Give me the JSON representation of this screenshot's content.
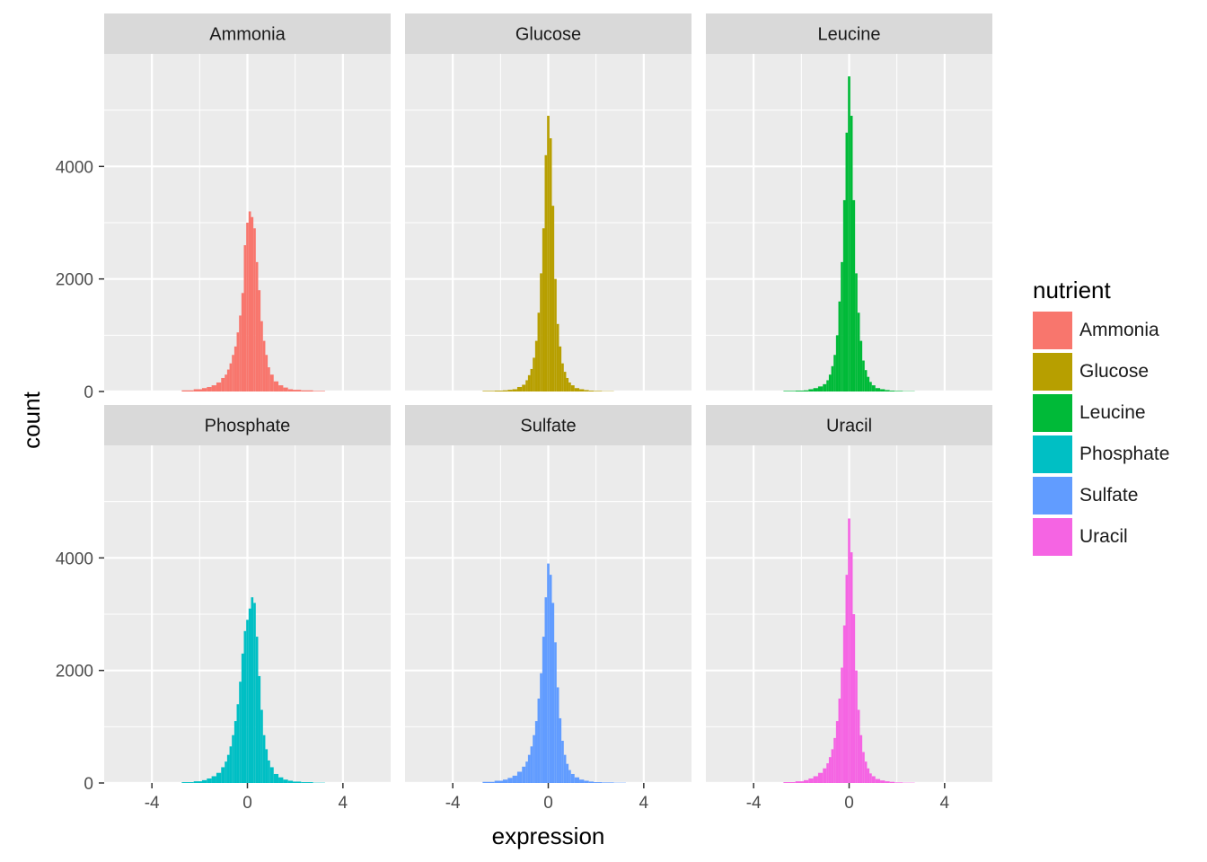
{
  "chart_data": {
    "type": "bar",
    "subtype": "faceted-histogram",
    "xlabel": "expression",
    "ylabel": "count",
    "xlim": [
      -6,
      6
    ],
    "ylim": [
      0,
      6000
    ],
    "xticks": [
      -4,
      0,
      4
    ],
    "yticks": [
      0,
      2000,
      4000
    ],
    "grid": true,
    "legend_position": "right",
    "legend_title": "nutrient",
    "x": [
      -4.5,
      -4.0,
      -3.5,
      -3.0,
      -2.5,
      -2.0,
      -1.8,
      -1.6,
      -1.4,
      -1.2,
      -1.0,
      -0.9,
      -0.8,
      -0.7,
      -0.6,
      -0.5,
      -0.4,
      -0.3,
      -0.2,
      -0.1,
      0.0,
      0.1,
      0.2,
      0.3,
      0.4,
      0.5,
      0.6,
      0.7,
      0.8,
      0.9,
      1.0,
      1.2,
      1.4,
      1.6,
      1.8,
      2.0,
      2.5,
      3.0,
      3.5,
      4.0,
      4.5,
      5.0,
      5.5,
      6.0
    ],
    "series": [
      {
        "name": "Ammonia",
        "color": "#F8766D",
        "values": [
          0,
          0,
          0,
          0,
          20,
          40,
          60,
          80,
          110,
          160,
          240,
          300,
          390,
          500,
          650,
          800,
          1050,
          1350,
          1750,
          2600,
          3000,
          3200,
          3100,
          2900,
          2300,
          1800,
          1250,
          900,
          650,
          430,
          300,
          180,
          110,
          70,
          40,
          30,
          20,
          10,
          0,
          0,
          0,
          0,
          0,
          0
        ]
      },
      {
        "name": "Glucose",
        "color": "#B79F00",
        "values": [
          0,
          0,
          0,
          0,
          10,
          15,
          20,
          30,
          40,
          80,
          120,
          200,
          290,
          400,
          600,
          900,
          1400,
          2100,
          2900,
          4200,
          4900,
          4500,
          3300,
          2000,
          1200,
          800,
          500,
          350,
          240,
          160,
          110,
          60,
          40,
          25,
          15,
          10,
          5,
          0,
          0,
          0,
          0,
          0,
          0,
          0
        ]
      },
      {
        "name": "Leucine",
        "color": "#00BA38",
        "values": [
          0,
          0,
          0,
          0,
          10,
          15,
          20,
          40,
          60,
          90,
          130,
          200,
          300,
          450,
          650,
          1000,
          1600,
          2300,
          3400,
          4600,
          5600,
          4900,
          3400,
          2100,
          1400,
          900,
          550,
          380,
          260,
          170,
          110,
          60,
          40,
          25,
          15,
          10,
          5,
          0,
          0,
          0,
          0,
          0,
          0,
          0
        ]
      },
      {
        "name": "Phosphate",
        "color": "#00BFC4",
        "values": [
          0,
          0,
          0,
          0,
          15,
          30,
          50,
          80,
          120,
          180,
          280,
          380,
          500,
          650,
          850,
          1100,
          1400,
          1800,
          2300,
          2700,
          2900,
          3100,
          3300,
          3200,
          2600,
          1900,
          1300,
          850,
          600,
          400,
          280,
          160,
          100,
          60,
          40,
          25,
          15,
          5,
          0,
          0,
          0,
          0,
          0,
          0
        ]
      },
      {
        "name": "Sulfate",
        "color": "#619CFF",
        "values": [
          0,
          0,
          0,
          0,
          20,
          40,
          60,
          90,
          130,
          200,
          290,
          380,
          500,
          650,
          850,
          1100,
          1500,
          1950,
          2600,
          3300,
          3900,
          3700,
          3200,
          2500,
          1700,
          1150,
          750,
          500,
          340,
          230,
          160,
          100,
          60,
          40,
          25,
          15,
          10,
          5,
          0,
          0,
          0,
          0,
          0,
          0
        ]
      },
      {
        "name": "Uracil",
        "color": "#F564E3",
        "values": [
          0,
          0,
          0,
          0,
          15,
          30,
          50,
          80,
          120,
          180,
          260,
          350,
          460,
          600,
          800,
          1100,
          1500,
          2050,
          2800,
          3700,
          4700,
          4100,
          3000,
          2000,
          1300,
          850,
          550,
          380,
          260,
          170,
          120,
          70,
          45,
          30,
          20,
          10,
          5,
          0,
          0,
          0,
          0,
          0,
          0,
          0
        ]
      }
    ]
  },
  "legend": {
    "title": "nutrient",
    "items": [
      {
        "label": "Ammonia",
        "color": "#F8766D"
      },
      {
        "label": "Glucose",
        "color": "#B79F00"
      },
      {
        "label": "Leucine",
        "color": "#00BA38"
      },
      {
        "label": "Phosphate",
        "color": "#00BFC4"
      },
      {
        "label": "Sulfate",
        "color": "#619CFF"
      },
      {
        "label": "Uracil",
        "color": "#F564E3"
      }
    ]
  }
}
